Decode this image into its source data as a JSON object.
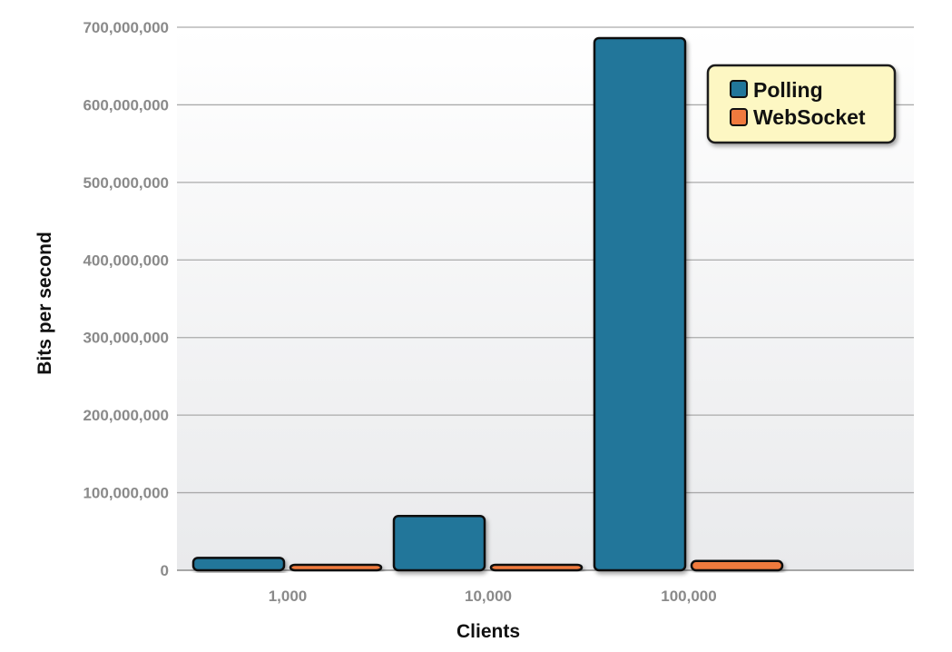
{
  "chart_data": {
    "type": "bar",
    "categories": [
      "1,000",
      "10,000",
      "100,000"
    ],
    "series": [
      {
        "name": "Polling",
        "values": [
          16000000,
          70000000,
          686000000
        ],
        "color": "#21769a"
      },
      {
        "name": "WebSocket",
        "values": [
          5000000,
          7000000,
          12000000
        ],
        "color": "#f07a3e"
      }
    ],
    "title": "",
    "xlabel": "Clients",
    "ylabel": "Bits per second",
    "ylim": [
      0,
      700000000
    ],
    "yticks": [
      {
        "value": 0,
        "label": "0"
      },
      {
        "value": 100000000,
        "label": "100,000,000"
      },
      {
        "value": 200000000,
        "label": "200,000,000"
      },
      {
        "value": 300000000,
        "label": "300,000,000"
      },
      {
        "value": 400000000,
        "label": "400,000,000"
      },
      {
        "value": 500000000,
        "label": "500,000,000"
      },
      {
        "value": 600000000,
        "label": "600,000,000"
      },
      {
        "value": 700000000,
        "label": "700,000,000"
      }
    ],
    "grid": true,
    "legend": {
      "position": "top-right",
      "background": "#fdf7c3"
    }
  }
}
